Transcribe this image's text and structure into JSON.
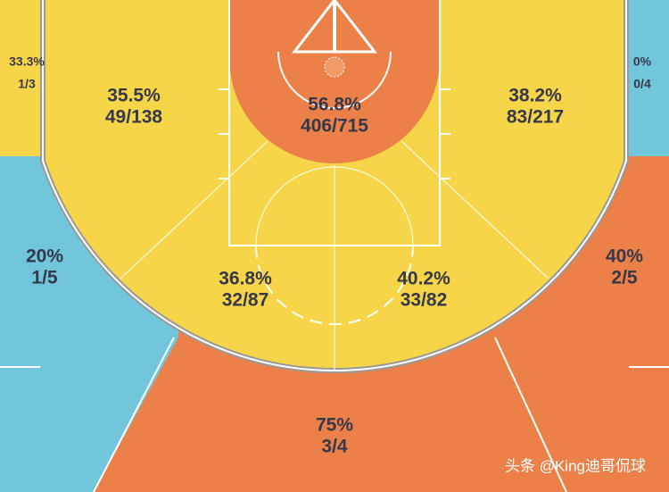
{
  "zones": [
    {
      "pct": "33.3%",
      "ratio": "1/3"
    },
    {
      "pct": "0%",
      "ratio": "0/4"
    },
    {
      "pct": "35.5%",
      "ratio": "49/138"
    },
    {
      "pct": "56.8%",
      "ratio": "406/715"
    },
    {
      "pct": "38.2%",
      "ratio": "83/217"
    },
    {
      "pct": "20%",
      "ratio": "1/5"
    },
    {
      "pct": "36.8%",
      "ratio": "32/87"
    },
    {
      "pct": "40.2%",
      "ratio": "33/82"
    },
    {
      "pct": "40%",
      "ratio": "2/5"
    },
    {
      "pct": "75%",
      "ratio": "3/4"
    }
  ],
  "watermark": "头条 @King迪哥侃球"
}
